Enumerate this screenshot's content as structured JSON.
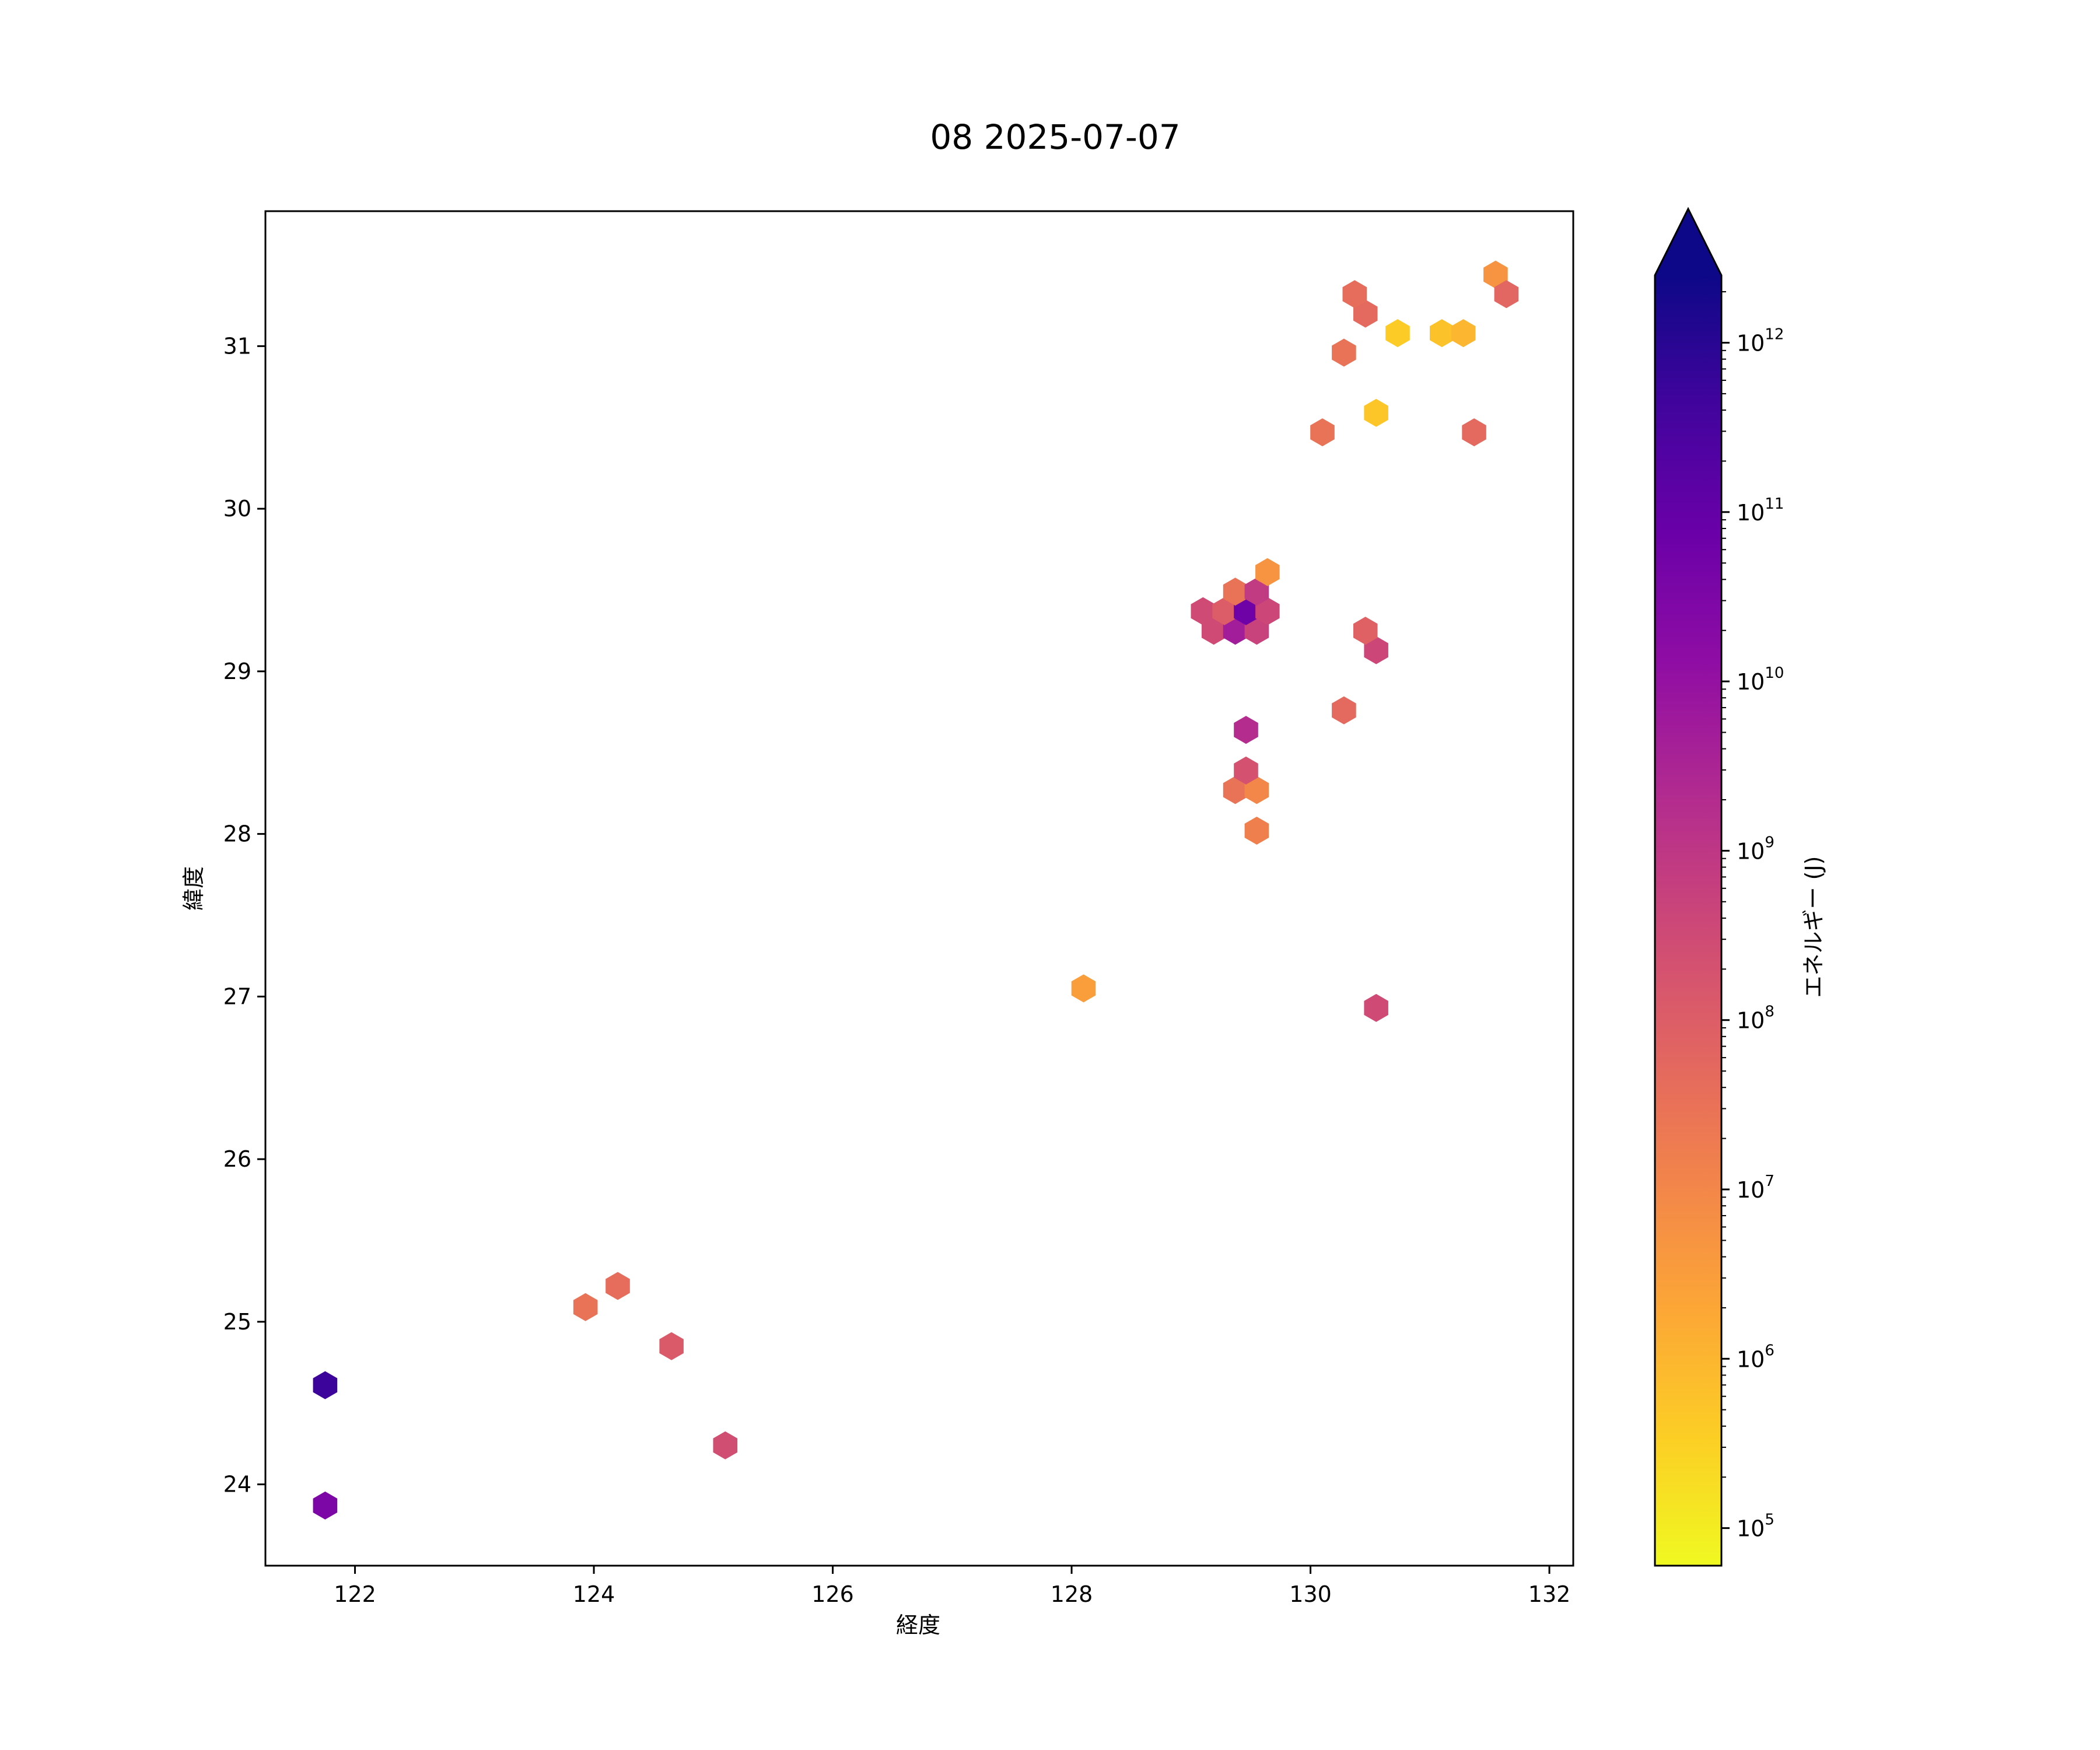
{
  "chart_data": {
    "type": "hexbin",
    "title": "08 2025-07-07",
    "xlabel": "経度",
    "ylabel": "緯度",
    "xlim": [
      121.25,
      132.2
    ],
    "ylim": [
      23.5,
      31.83
    ],
    "x_ticks": [
      122,
      124,
      126,
      128,
      130,
      132
    ],
    "y_ticks": [
      24,
      25,
      26,
      27,
      28,
      29,
      30,
      31
    ],
    "colorbar": {
      "label": "エネルギー (J)",
      "scale": "log",
      "colormap": "plasma_r",
      "range": [
        60000,
        2500000000000
      ],
      "extend": "max",
      "ticks": [
        {
          "value": 100000,
          "base": "10",
          "exp": "5"
        },
        {
          "value": 1000000,
          "base": "10",
          "exp": "6"
        },
        {
          "value": 10000000,
          "base": "10",
          "exp": "7"
        },
        {
          "value": 100000000,
          "base": "10",
          "exp": "8"
        },
        {
          "value": 1000000000,
          "base": "10",
          "exp": "9"
        },
        {
          "value": 10000000000,
          "base": "10",
          "exp": "10"
        },
        {
          "value": 100000000000,
          "base": "10",
          "exp": "11"
        },
        {
          "value": 1000000000000,
          "base": "10",
          "exp": "12"
        }
      ]
    },
    "points": [
      {
        "lon": 121.75,
        "lat": 24.61,
        "energy": 500000000000.0
      },
      {
        "lon": 121.75,
        "lat": 23.87,
        "energy": 30000000000.0
      },
      {
        "lon": 123.93,
        "lat": 25.09,
        "energy": 30000000.0
      },
      {
        "lon": 124.2,
        "lat": 25.22,
        "energy": 40000000.0
      },
      {
        "lon": 124.65,
        "lat": 24.85,
        "energy": 120000000.0
      },
      {
        "lon": 125.1,
        "lat": 24.24,
        "energy": 250000000.0
      },
      {
        "lon": 128.1,
        "lat": 27.05,
        "energy": 3000000.0
      },
      {
        "lon": 130.55,
        "lat": 26.93,
        "energy": 300000000.0
      },
      {
        "lon": 129.55,
        "lat": 28.02,
        "energy": 15000000.0
      },
      {
        "lon": 129.37,
        "lat": 28.27,
        "energy": 30000000.0
      },
      {
        "lon": 129.55,
        "lat": 28.27,
        "energy": 10000000.0
      },
      {
        "lon": 129.46,
        "lat": 28.39,
        "energy": 200000000.0
      },
      {
        "lon": 129.46,
        "lat": 28.64,
        "energy": 2000000000.0
      },
      {
        "lon": 130.28,
        "lat": 28.76,
        "energy": 50000000.0
      },
      {
        "lon": 130.55,
        "lat": 29.13,
        "energy": 400000000.0
      },
      {
        "lon": 130.46,
        "lat": 29.25,
        "energy": 80000000.0
      },
      {
        "lon": 129.19,
        "lat": 29.25,
        "energy": 300000000.0
      },
      {
        "lon": 129.37,
        "lat": 29.25,
        "energy": 5000000000.0
      },
      {
        "lon": 129.55,
        "lat": 29.25,
        "energy": 500000000.0
      },
      {
        "lon": 129.1,
        "lat": 29.37,
        "energy": 300000000.0
      },
      {
        "lon": 129.28,
        "lat": 29.37,
        "energy": 100000000.0
      },
      {
        "lon": 129.46,
        "lat": 29.37,
        "energy": 60000000000.0
      },
      {
        "lon": 129.64,
        "lat": 29.37,
        "energy": 400000000.0
      },
      {
        "lon": 129.37,
        "lat": 29.49,
        "energy": 30000000.0
      },
      {
        "lon": 129.55,
        "lat": 29.49,
        "energy": 800000000.0
      },
      {
        "lon": 129.64,
        "lat": 29.61,
        "energy": 5000000.0
      },
      {
        "lon": 130.1,
        "lat": 30.47,
        "energy": 30000000.0
      },
      {
        "lon": 130.55,
        "lat": 30.59,
        "energy": 500000.0
      },
      {
        "lon": 130.28,
        "lat": 30.96,
        "energy": 30000000.0
      },
      {
        "lon": 130.73,
        "lat": 31.08,
        "energy": 400000.0
      },
      {
        "lon": 131.1,
        "lat": 31.08,
        "energy": 600000.0
      },
      {
        "lon": 131.28,
        "lat": 31.08,
        "energy": 1000000.0
      },
      {
        "lon": 130.46,
        "lat": 31.2,
        "energy": 50000000.0
      },
      {
        "lon": 130.37,
        "lat": 31.32,
        "energy": 40000000.0
      },
      {
        "lon": 131.37,
        "lat": 30.47,
        "energy": 50000000.0
      },
      {
        "lon": 131.55,
        "lat": 31.44,
        "energy": 5000000.0
      },
      {
        "lon": 131.64,
        "lat": 31.32,
        "energy": 60000000.0
      }
    ]
  }
}
